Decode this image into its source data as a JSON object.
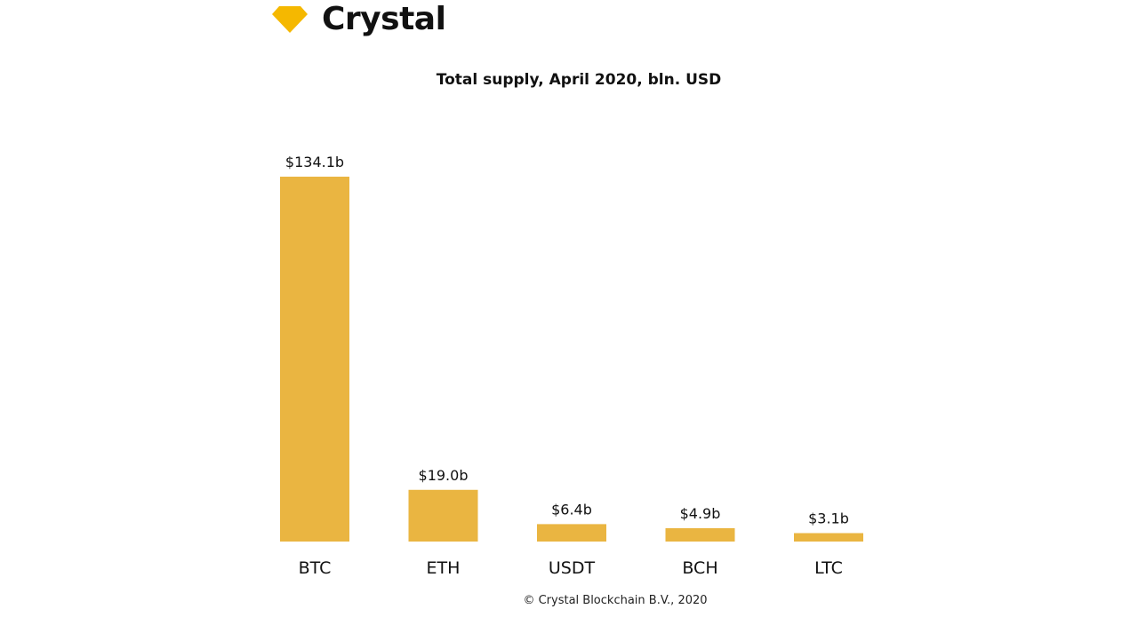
{
  "brand": {
    "name": "Crystal",
    "logo_icon": "diamond-icon",
    "logo_color": "#F5B800"
  },
  "footer": {
    "copyright": "© Crystal Blockchain B.V., 2020"
  },
  "chart_data": {
    "type": "bar",
    "title": "Total supply, April 2020, bln. USD",
    "xlabel": "",
    "ylabel": "",
    "categories": [
      "BTC",
      "ETH",
      "USDT",
      "BCH",
      "LTC"
    ],
    "values": [
      134.1,
      19.0,
      6.4,
      4.9,
      3.1
    ],
    "value_labels": [
      "$134.1b",
      "$19.0b",
      "$6.4b",
      "$4.9b",
      "$3.1b"
    ],
    "ylim": [
      0,
      134.1
    ],
    "bar_color": "#EAB541",
    "grid": false,
    "legend": "none"
  }
}
